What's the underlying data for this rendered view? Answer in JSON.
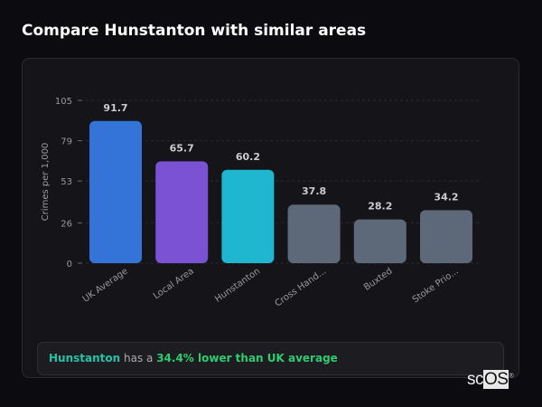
{
  "header": {
    "title": "Compare Hunstanton with similar areas"
  },
  "chart_data": {
    "type": "bar",
    "categories": [
      "UK Average",
      "Local Area",
      "Hunstanton",
      "Cross Hand...",
      "Buxted",
      "Stoke Prio..."
    ],
    "values": [
      91.7,
      65.7,
      60.2,
      37.8,
      28.2,
      34.2
    ],
    "value_labels": [
      "91.7",
      "65.7",
      "60.2",
      "37.8",
      "28.2",
      "34.2"
    ],
    "colors": [
      "#3474d8",
      "#7b52d3",
      "#1fb7cf",
      "#5d6878",
      "#5d6878",
      "#5d6878"
    ],
    "ylabel": "Crimes per 1,000",
    "yticks": [
      0,
      26,
      53,
      79,
      105
    ],
    "ylim": [
      0,
      105
    ],
    "grid": true
  },
  "summary": {
    "area": "Hunstanton",
    "middle": " has a ",
    "comparison": "34.4% lower than UK average"
  },
  "logo": {
    "text_a": "sc",
    "text_b": "OS",
    "mark": "®"
  }
}
